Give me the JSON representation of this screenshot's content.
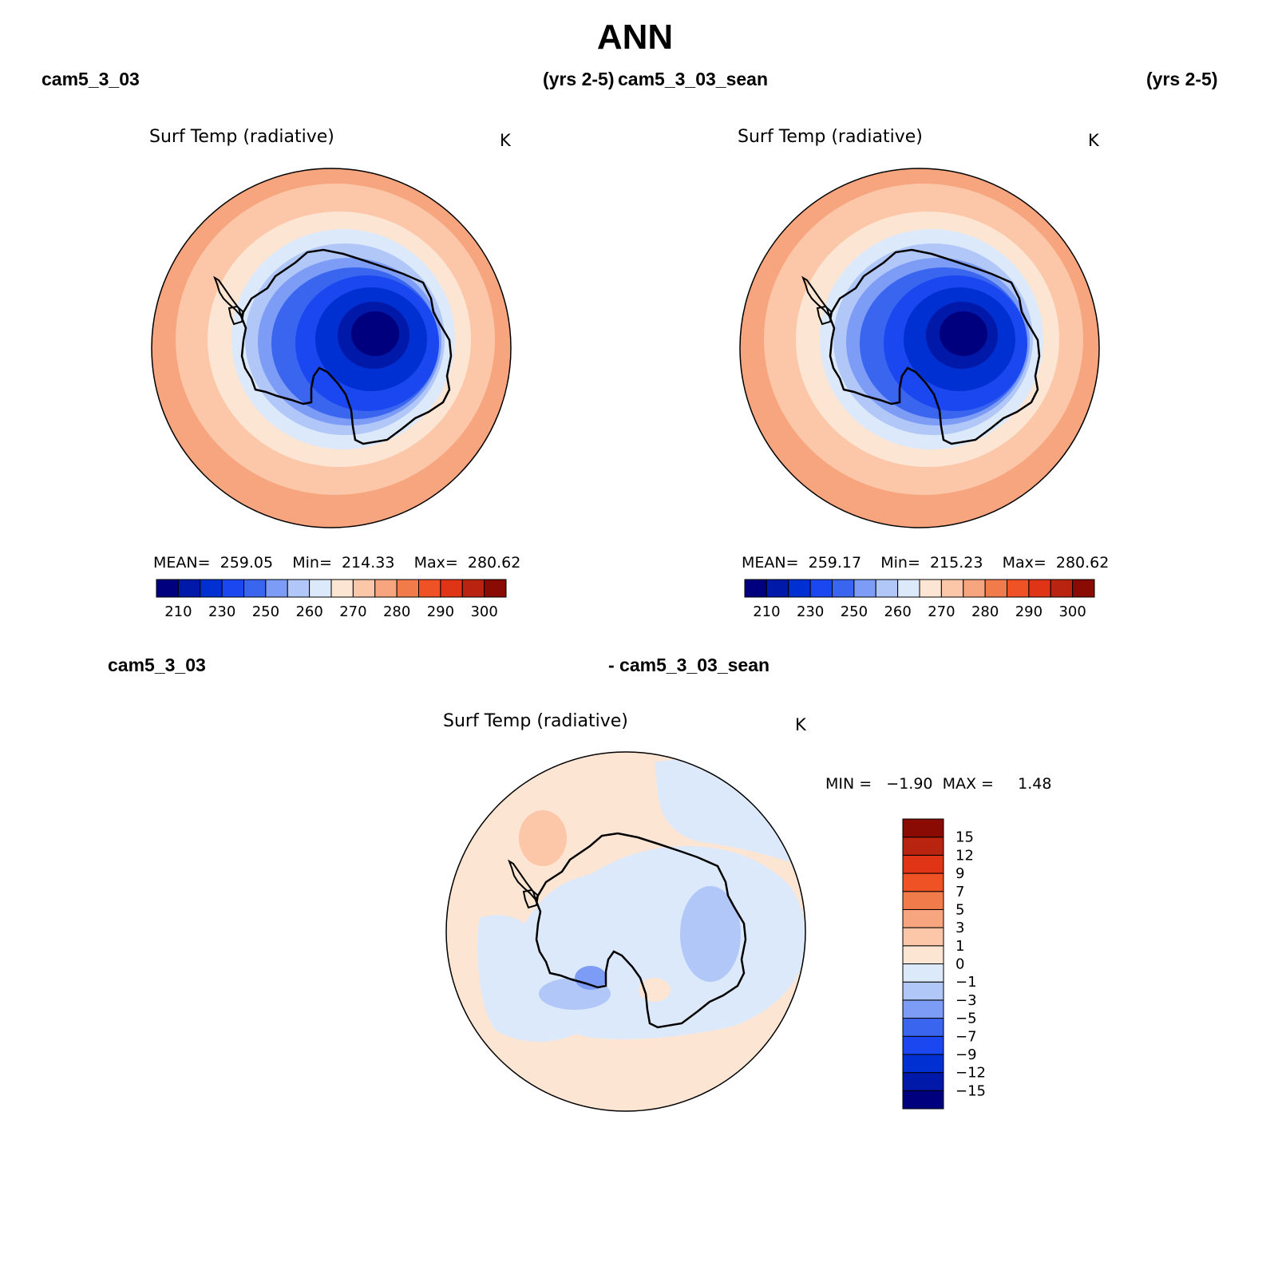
{
  "page_title": "ANN",
  "top_left": {
    "case": "cam5_3_03",
    "years": "(yrs 2-5)"
  },
  "top_right": {
    "case": "cam5_3_03_sean",
    "years": "(yrs 2-5)"
  },
  "bottom": {
    "case_a": "cam5_3_03",
    "case_b": "- cam5_3_03_sean"
  },
  "panels": [
    {
      "variable": "Surf Temp (radiative)",
      "units": "K",
      "stats_text": "MEAN=  259.05    Min=  214.33    Max=  280.62",
      "stats": {
        "mean": 259.05,
        "min": 214.33,
        "max": 280.62
      }
    },
    {
      "variable": "Surf Temp (radiative)",
      "units": "K",
      "stats_text": "MEAN=  259.17    Min=  215.23    Max=  280.62",
      "stats": {
        "mean": 259.17,
        "min": 215.23,
        "max": 280.62
      }
    },
    {
      "variable": "Surf Temp (radiative)",
      "units": "K",
      "stats_text": "MIN =   −1.90  MAX =     1.48",
      "stats": {
        "min": -1.9,
        "max": 1.48
      }
    }
  ],
  "colorbar_main": {
    "colors": [
      "#00007e",
      "#0019a8",
      "#0030d2",
      "#1a47f0",
      "#3a66ef",
      "#7c9cf5",
      "#b0c7f8",
      "#dce9fb",
      "#fde5d3",
      "#fbc7a8",
      "#f6a57e",
      "#f27b4b",
      "#ef5224",
      "#e03416",
      "#b82410",
      "#8a0a04"
    ],
    "tick_labels": [
      "210",
      "230",
      "250",
      "260",
      "270",
      "280",
      "290",
      "300"
    ]
  },
  "colorbar_diff": {
    "colors": [
      "#00007e",
      "#0019a8",
      "#0030d2",
      "#1a47f0",
      "#3a66ef",
      "#7c9cf5",
      "#b0c7f8",
      "#dce9fb",
      "#fde5d3",
      "#fbc7a8",
      "#f6a57e",
      "#f27b4b",
      "#ef5224",
      "#e03416",
      "#b82410",
      "#8a0a04"
    ],
    "tick_labels": [
      "15",
      "12",
      "9",
      "7",
      "5",
      "3",
      "1",
      "0",
      "−1",
      "−3",
      "−5",
      "−7",
      "−9",
      "−12",
      "−15"
    ]
  }
}
